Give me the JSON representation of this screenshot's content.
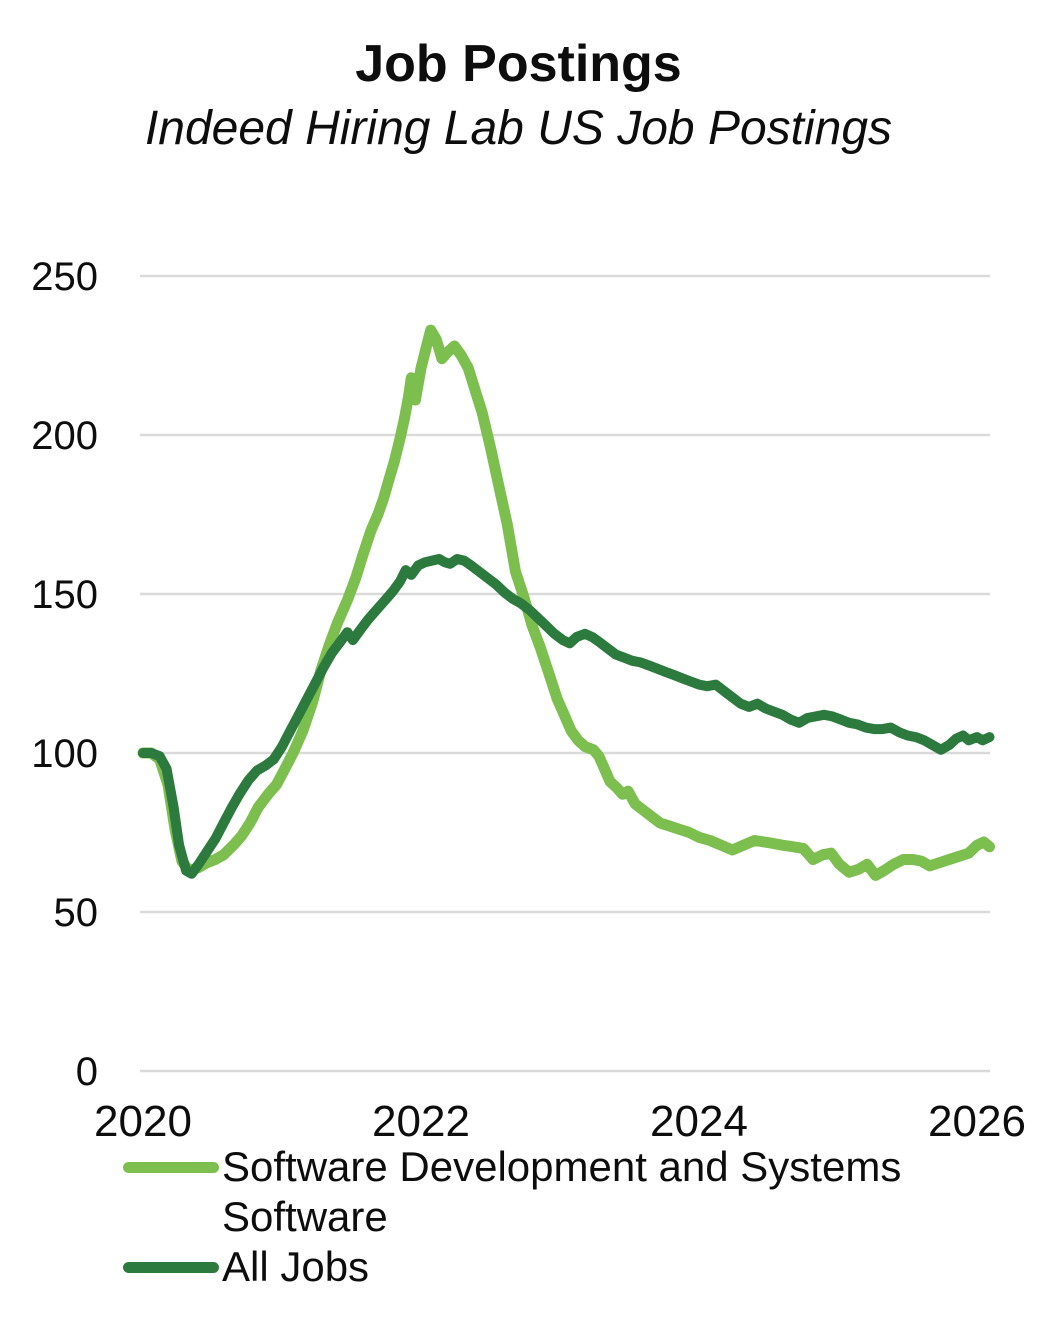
{
  "header": {
    "title": "Job Postings",
    "subtitle": "Indeed Hiring Lab US Job Postings"
  },
  "chart_data": {
    "type": "line",
    "title": "Job Postings",
    "subtitle": "Indeed Hiring Lab US Job Postings",
    "xlabel": "",
    "ylabel": "",
    "x_ticks": [
      2020,
      2022,
      2024,
      2026
    ],
    "y_ticks": [
      0,
      50,
      100,
      150,
      200,
      250
    ],
    "xlim": [
      2020,
      2026.1
    ],
    "ylim": [
      0,
      260
    ],
    "grid": "horizontal-gridlines-only",
    "gridline_color": "#dadada",
    "legend_position": "bottom-left",
    "series": [
      {
        "name": "Software Development and Systems Software",
        "color": "#7cbf4f",
        "line_width": 11,
        "points": [
          [
            2020.0,
            100
          ],
          [
            2020.06,
            100
          ],
          [
            2020.12,
            98
          ],
          [
            2020.18,
            90
          ],
          [
            2020.23,
            76
          ],
          [
            2020.28,
            66
          ],
          [
            2020.33,
            63
          ],
          [
            2020.4,
            64
          ],
          [
            2020.46,
            65.5
          ],
          [
            2020.52,
            66.5
          ],
          [
            2020.58,
            68
          ],
          [
            2020.65,
            71
          ],
          [
            2020.71,
            74
          ],
          [
            2020.77,
            78
          ],
          [
            2020.83,
            83
          ],
          [
            2020.9,
            87
          ],
          [
            2020.96,
            90
          ],
          [
            2021.02,
            95
          ],
          [
            2021.08,
            100
          ],
          [
            2021.15,
            107
          ],
          [
            2021.22,
            116
          ],
          [
            2021.28,
            126
          ],
          [
            2021.34,
            134
          ],
          [
            2021.4,
            141
          ],
          [
            2021.47,
            148
          ],
          [
            2021.53,
            155
          ],
          [
            2021.58,
            162
          ],
          [
            2021.64,
            170
          ],
          [
            2021.69,
            175
          ],
          [
            2021.73,
            180
          ],
          [
            2021.77,
            186
          ],
          [
            2021.81,
            192
          ],
          [
            2021.85,
            199
          ],
          [
            2021.88,
            205
          ],
          [
            2021.91,
            212
          ],
          [
            2021.93,
            218
          ],
          [
            2021.96,
            211
          ],
          [
            2022.0,
            221
          ],
          [
            2022.04,
            228
          ],
          [
            2022.07,
            233
          ],
          [
            2022.11,
            230
          ],
          [
            2022.15,
            224
          ],
          [
            2022.19,
            226
          ],
          [
            2022.24,
            228
          ],
          [
            2022.29,
            225
          ],
          [
            2022.34,
            221
          ],
          [
            2022.39,
            214
          ],
          [
            2022.44,
            207
          ],
          [
            2022.5,
            196
          ],
          [
            2022.56,
            184
          ],
          [
            2022.62,
            172
          ],
          [
            2022.68,
            157
          ],
          [
            2022.74,
            149
          ],
          [
            2022.8,
            140
          ],
          [
            2022.86,
            133
          ],
          [
            2022.92,
            125
          ],
          [
            2022.98,
            117
          ],
          [
            2023.03,
            112
          ],
          [
            2023.08,
            107
          ],
          [
            2023.13,
            104
          ],
          [
            2023.18,
            102
          ],
          [
            2023.24,
            101
          ],
          [
            2023.28,
            99
          ],
          [
            2023.31,
            96
          ],
          [
            2023.36,
            91
          ],
          [
            2023.41,
            89
          ],
          [
            2023.45,
            87
          ],
          [
            2023.49,
            88
          ],
          [
            2023.54,
            84
          ],
          [
            2023.6,
            82
          ],
          [
            2023.66,
            80
          ],
          [
            2023.72,
            78
          ],
          [
            2023.79,
            77
          ],
          [
            2023.86,
            76
          ],
          [
            2023.93,
            75
          ],
          [
            2024.0,
            73.5
          ],
          [
            2024.08,
            72.5
          ],
          [
            2024.16,
            71
          ],
          [
            2024.24,
            69.5
          ],
          [
            2024.32,
            71
          ],
          [
            2024.4,
            72.5
          ],
          [
            2024.47,
            72
          ],
          [
            2024.54,
            71.5
          ],
          [
            2024.6,
            71
          ],
          [
            2024.68,
            70.5
          ],
          [
            2024.75,
            70
          ],
          [
            2024.82,
            66.5
          ],
          [
            2024.89,
            68
          ],
          [
            2024.95,
            68.5
          ],
          [
            2025.01,
            65
          ],
          [
            2025.08,
            62.5
          ],
          [
            2025.15,
            63.5
          ],
          [
            2025.21,
            65
          ],
          [
            2025.27,
            61.5
          ],
          [
            2025.33,
            63
          ],
          [
            2025.4,
            65
          ],
          [
            2025.47,
            66.5
          ],
          [
            2025.54,
            66.5
          ],
          [
            2025.6,
            66
          ],
          [
            2025.66,
            64.5
          ],
          [
            2025.73,
            65.5
          ],
          [
            2025.8,
            66.5
          ],
          [
            2025.87,
            67.5
          ],
          [
            2025.94,
            68.5
          ],
          [
            2026.0,
            71
          ],
          [
            2026.05,
            72
          ],
          [
            2026.09,
            70.5
          ]
        ]
      },
      {
        "name": "All Jobs",
        "color": "#2d7a3e",
        "line_width": 10,
        "points": [
          [
            2020.0,
            100
          ],
          [
            2020.06,
            100
          ],
          [
            2020.12,
            99
          ],
          [
            2020.17,
            95
          ],
          [
            2020.22,
            83
          ],
          [
            2020.26,
            71
          ],
          [
            2020.31,
            63
          ],
          [
            2020.35,
            62
          ],
          [
            2020.4,
            65
          ],
          [
            2020.46,
            69
          ],
          [
            2020.52,
            73
          ],
          [
            2020.58,
            78
          ],
          [
            2020.64,
            83
          ],
          [
            2020.7,
            87.5
          ],
          [
            2020.76,
            91.5
          ],
          [
            2020.82,
            94.5
          ],
          [
            2020.88,
            96
          ],
          [
            2020.94,
            98
          ],
          [
            2021.0,
            102
          ],
          [
            2021.06,
            107
          ],
          [
            2021.12,
            112
          ],
          [
            2021.18,
            117
          ],
          [
            2021.24,
            122
          ],
          [
            2021.3,
            127
          ],
          [
            2021.36,
            131.5
          ],
          [
            2021.42,
            135
          ],
          [
            2021.47,
            138
          ],
          [
            2021.51,
            135.5
          ],
          [
            2021.56,
            138.5
          ],
          [
            2021.62,
            142
          ],
          [
            2021.68,
            145
          ],
          [
            2021.74,
            148
          ],
          [
            2021.8,
            151
          ],
          [
            2021.85,
            154
          ],
          [
            2021.89,
            157.5
          ],
          [
            2021.93,
            156
          ],
          [
            2021.98,
            159
          ],
          [
            2022.03,
            160
          ],
          [
            2022.08,
            160.5
          ],
          [
            2022.13,
            161
          ],
          [
            2022.17,
            160
          ],
          [
            2022.21,
            159.5
          ],
          [
            2022.26,
            161
          ],
          [
            2022.31,
            160.5
          ],
          [
            2022.36,
            159
          ],
          [
            2022.42,
            157
          ],
          [
            2022.48,
            155
          ],
          [
            2022.54,
            153
          ],
          [
            2022.6,
            150.5
          ],
          [
            2022.66,
            148.5
          ],
          [
            2022.72,
            147
          ],
          [
            2022.78,
            145
          ],
          [
            2022.84,
            142.5
          ],
          [
            2022.9,
            140
          ],
          [
            2022.96,
            137.5
          ],
          [
            2023.02,
            135.5
          ],
          [
            2023.07,
            134.5
          ],
          [
            2023.12,
            136.5
          ],
          [
            2023.18,
            137.5
          ],
          [
            2023.23,
            136.5
          ],
          [
            2023.28,
            135
          ],
          [
            2023.34,
            133
          ],
          [
            2023.4,
            131
          ],
          [
            2023.46,
            130
          ],
          [
            2023.52,
            129
          ],
          [
            2023.58,
            128.5
          ],
          [
            2023.64,
            127.5
          ],
          [
            2023.7,
            126.5
          ],
          [
            2023.76,
            125.5
          ],
          [
            2023.82,
            124.5
          ],
          [
            2023.88,
            123.5
          ],
          [
            2023.94,
            122.5
          ],
          [
            2024.0,
            121.5
          ],
          [
            2024.06,
            121
          ],
          [
            2024.12,
            121.5
          ],
          [
            2024.18,
            119.5
          ],
          [
            2024.24,
            117.5
          ],
          [
            2024.3,
            115.5
          ],
          [
            2024.36,
            114.5
          ],
          [
            2024.42,
            115.5
          ],
          [
            2024.48,
            114
          ],
          [
            2024.54,
            113
          ],
          [
            2024.6,
            112
          ],
          [
            2024.66,
            110.5
          ],
          [
            2024.72,
            109.5
          ],
          [
            2024.78,
            111
          ],
          [
            2024.84,
            111.5
          ],
          [
            2024.9,
            112
          ],
          [
            2024.96,
            111.5
          ],
          [
            2025.02,
            110.5
          ],
          [
            2025.08,
            109.5
          ],
          [
            2025.14,
            109
          ],
          [
            2025.2,
            108
          ],
          [
            2025.26,
            107.5
          ],
          [
            2025.32,
            107.5
          ],
          [
            2025.38,
            108
          ],
          [
            2025.44,
            106.5
          ],
          [
            2025.5,
            105.5
          ],
          [
            2025.56,
            105
          ],
          [
            2025.62,
            104
          ],
          [
            2025.68,
            102.5
          ],
          [
            2025.74,
            101
          ],
          [
            2025.8,
            102.5
          ],
          [
            2025.85,
            104.5
          ],
          [
            2025.9,
            105.5
          ],
          [
            2025.94,
            104
          ],
          [
            2026.0,
            105
          ],
          [
            2026.04,
            104
          ],
          [
            2026.09,
            105
          ]
        ]
      }
    ]
  },
  "legend": {
    "items": [
      {
        "label": "Software Development and Systems Software",
        "color": "#7cbf4f"
      },
      {
        "label": "All Jobs",
        "color": "#2d7a3e"
      }
    ]
  }
}
